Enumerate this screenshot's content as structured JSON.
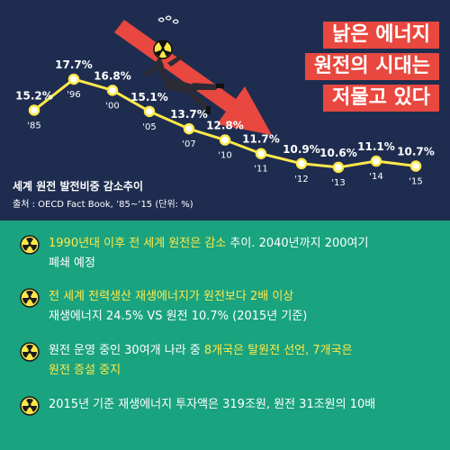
{
  "headline": {
    "line1": "낡은 에너지",
    "line2": "원전의 시대는",
    "line3": "저물고 있다"
  },
  "chart_data": {
    "type": "line",
    "title": "세계 원전 발전비중 감소추이",
    "source": "출처 : OECD Fact Book, ’85~’15 (단위: %)",
    "x": [
      "'85",
      "'96",
      "'00",
      "'05",
      "'07",
      "'10",
      "'11",
      "'12",
      "'13",
      "'14",
      "'15"
    ],
    "values": [
      15.2,
      17.7,
      16.8,
      15.1,
      13.7,
      12.8,
      11.7,
      10.9,
      10.6,
      11.1,
      10.7
    ],
    "value_labels": [
      "15.2%",
      "17.7%",
      "16.8%",
      "15.1%",
      "13.7%",
      "12.8%",
      "11.7%",
      "10.9%",
      "10.6%",
      "11.1%",
      "10.7%"
    ],
    "unit": "%",
    "ylim": [
      9,
      19
    ],
    "line_color": "#ffe94a",
    "grid": false,
    "legend": "none"
  },
  "bullets": [
    {
      "line1": [
        {
          "t": "1990년대 이후 전 세계 원전은 감소",
          "hl": true
        },
        {
          "t": " 추이. 2040년까지 200여기",
          "hl": false
        }
      ],
      "line2": [
        {
          "t": "폐쇄 예정",
          "hl": false
        }
      ]
    },
    {
      "line1": [
        {
          "t": "전 세계 전력생산 재생에너지가 원전보다 2배 이상",
          "hl": true
        }
      ],
      "line2": [
        {
          "t": "재생에너지 24.5% VS 원전 10.7% (2015년 기준)",
          "hl": false
        }
      ]
    },
    {
      "line1": [
        {
          "t": "원전 운영 중인 30여개 나라 중 ",
          "hl": false
        },
        {
          "t": "8개국은 탈원전 선언, 7개국은",
          "hl": true
        }
      ],
      "line2": [
        {
          "t": "원전 증설 중지",
          "hl": true
        }
      ]
    },
    {
      "line1": [
        {
          "t": "2015년 기준 재생에너지 투자액은 319조원, 원전 31조원의 10배",
          "hl": false
        }
      ],
      "line2": []
    }
  ],
  "colors": {
    "top_bg": "#1e2d4f",
    "bottom_bg": "#1aa37f",
    "headline_bg": "#e8483f",
    "highlight": "#ffe94a",
    "arrow": "#e8483f"
  },
  "icons": {
    "bullet": "radiation-icon",
    "figure": "falling-radiation-man"
  }
}
